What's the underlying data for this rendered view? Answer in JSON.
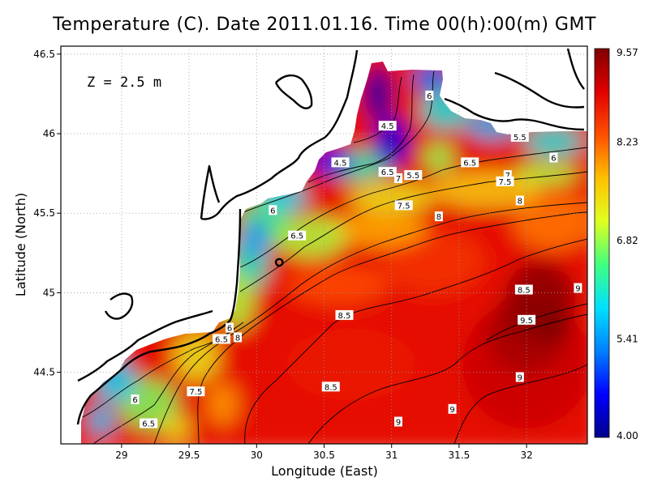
{
  "title": "Temperature (C). Date 2011.01.16. Time 00(h):00(m) GMT",
  "annotation": "Z = 2.5 m",
  "colors": {
    "land": "#ffffff",
    "coast": "#000000",
    "grid": "#9a9a9a",
    "contour": "#000000"
  },
  "chart_data": {
    "type": "heatmap",
    "title": "Temperature (C). Date 2011.01.16. Time 00(h):00(m) GMT",
    "xlabel": "Longitude (East)",
    "ylabel": "Latitude (North)",
    "xlim": [
      28.55,
      32.45
    ],
    "ylim": [
      44.05,
      46.55
    ],
    "x_ticks": [
      "29",
      "29.5",
      "30",
      "30.5",
      "31",
      "31.5",
      "32"
    ],
    "y_ticks": [
      "44.5",
      "45",
      "45.5",
      "46",
      "46.5"
    ],
    "grid": true,
    "colorbar": {
      "min": 4.0,
      "max": 9.57,
      "ticks": [
        "9.57",
        "8.23",
        "6.82",
        "5.41",
        "4.00"
      ],
      "colormap": [
        "#00008b",
        "#0000ff",
        "#0080ff",
        "#00e0ff",
        "#40ff80",
        "#e0ff20",
        "#ffc000",
        "#ff5000",
        "#e00000",
        "#800000"
      ]
    },
    "contour_labels": [
      {
        "text": "4.5",
        "lon": 30.97,
        "lat": 46.05
      },
      {
        "text": "4.5",
        "lon": 30.62,
        "lat": 45.82
      },
      {
        "text": "6",
        "lon": 31.28,
        "lat": 46.24
      },
      {
        "text": "5.5",
        "lon": 31.95,
        "lat": 45.98
      },
      {
        "text": "6",
        "lon": 32.2,
        "lat": 45.85
      },
      {
        "text": "6.5",
        "lon": 31.58,
        "lat": 45.82
      },
      {
        "text": "6.5",
        "lon": 30.97,
        "lat": 45.76
      },
      {
        "text": "7",
        "lon": 31.05,
        "lat": 45.72
      },
      {
        "text": "5.5",
        "lon": 31.16,
        "lat": 45.74
      },
      {
        "text": "7",
        "lon": 31.86,
        "lat": 45.74
      },
      {
        "text": "7.5",
        "lon": 31.84,
        "lat": 45.7
      },
      {
        "text": "7.5",
        "lon": 31.09,
        "lat": 45.55
      },
      {
        "text": "8",
        "lon": 31.95,
        "lat": 45.58
      },
      {
        "text": "8",
        "lon": 31.35,
        "lat": 45.48
      },
      {
        "text": "6",
        "lon": 30.12,
        "lat": 45.52
      },
      {
        "text": "6.5",
        "lon": 30.3,
        "lat": 45.36
      },
      {
        "text": "8.5",
        "lon": 31.98,
        "lat": 45.02
      },
      {
        "text": "9",
        "lon": 32.38,
        "lat": 45.03
      },
      {
        "text": "8.5",
        "lon": 30.65,
        "lat": 44.86
      },
      {
        "text": "9.5",
        "lon": 32.0,
        "lat": 44.83
      },
      {
        "text": "6",
        "lon": 29.8,
        "lat": 44.78
      },
      {
        "text": "6.5",
        "lon": 29.74,
        "lat": 44.71
      },
      {
        "text": "8",
        "lon": 29.86,
        "lat": 44.72
      },
      {
        "text": "9",
        "lon": 31.95,
        "lat": 44.47
      },
      {
        "text": "8.5",
        "lon": 30.55,
        "lat": 44.41
      },
      {
        "text": "7.5",
        "lon": 29.55,
        "lat": 44.38
      },
      {
        "text": "6",
        "lon": 29.1,
        "lat": 44.33
      },
      {
        "text": "9",
        "lon": 31.45,
        "lat": 44.27
      },
      {
        "text": "6.5",
        "lon": 29.2,
        "lat": 44.18
      },
      {
        "text": "9",
        "lon": 31.05,
        "lat": 44.19
      }
    ]
  }
}
